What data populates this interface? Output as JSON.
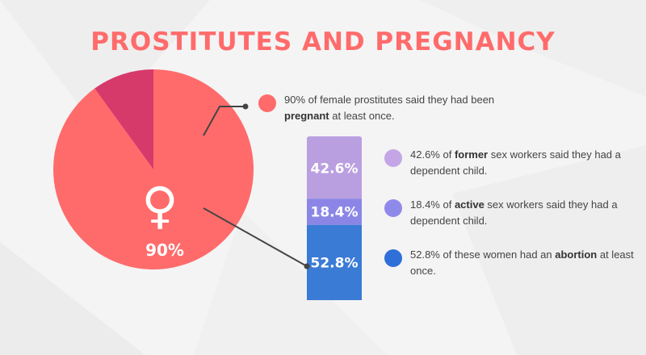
{
  "title": "PROSTITUTES AND PREGNANCY",
  "colors": {
    "title": "#ff6b6b",
    "pregnant": "#ff6b6b",
    "not_pregnant": "#d63a6b",
    "former": "#b99fe0",
    "active": "#8b86e6",
    "abortion": "#3a7bd5",
    "connector": "#444444"
  },
  "female_symbol": "♀",
  "notes": {
    "pregnant": {
      "pre": "90% of female prostitutes said they had been ",
      "bold": "pregnant",
      "post": " at least once.",
      "dot_color": "#ff6b6b"
    },
    "former": {
      "pre": "42.6% of ",
      "bold": "former",
      "post": " sex workers said they had a dependent child.",
      "dot_color": "#c4a6e6"
    },
    "active": {
      "pre": "18.4% of ",
      "bold": "active",
      "post": " sex workers said they had a dependent child.",
      "dot_color": "#8f8aea"
    },
    "abortion": {
      "pre": "52.8% of these women had an ",
      "bold": "abortion",
      "post": " at least once.",
      "dot_color": "#2f6fd8"
    }
  },
  "chart_data": [
    {
      "type": "pie",
      "slices": [
        {
          "category": "pregnant",
          "value": 90,
          "label": "90%"
        },
        {
          "category": "not pregnant",
          "value": 10,
          "label": ""
        }
      ]
    },
    {
      "type": "bar",
      "stacked": true,
      "series": [
        {
          "category": "former",
          "value": 42.6,
          "label": "42.6%"
        },
        {
          "category": "active",
          "value": 18.4,
          "label": "18.4%"
        },
        {
          "category": "abortion",
          "value": 52.8,
          "label": "52.8%"
        }
      ]
    }
  ]
}
